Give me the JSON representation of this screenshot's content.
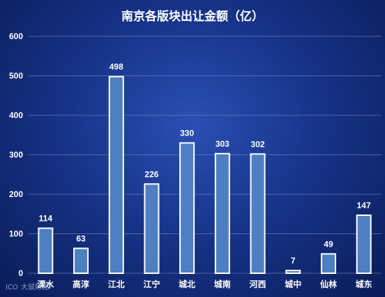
{
  "colors": {
    "bar_fill": "#4f7fc3",
    "bar_stroke": "#ffffff",
    "grid": "#7f93c8",
    "text": "#ffffff"
  },
  "chart_data": {
    "type": "bar",
    "title": "南京各版块出让金额（亿）",
    "xlabel": "",
    "ylabel": "",
    "categories": [
      "溧水",
      "高淳",
      "江北",
      "江宁",
      "城北",
      "城南",
      "河西",
      "城中",
      "仙林",
      "城东"
    ],
    "values": [
      114,
      63,
      498,
      226,
      330,
      303,
      302,
      7,
      49,
      147
    ],
    "ylim": [
      0,
      600
    ],
    "yticks": [
      0,
      100,
      200,
      300,
      400,
      500,
      600
    ],
    "grid": true,
    "data_labels": true,
    "legend": "none"
  },
  "watermark": {
    "text": "大鼠财经",
    "logo_text": "ICO"
  }
}
